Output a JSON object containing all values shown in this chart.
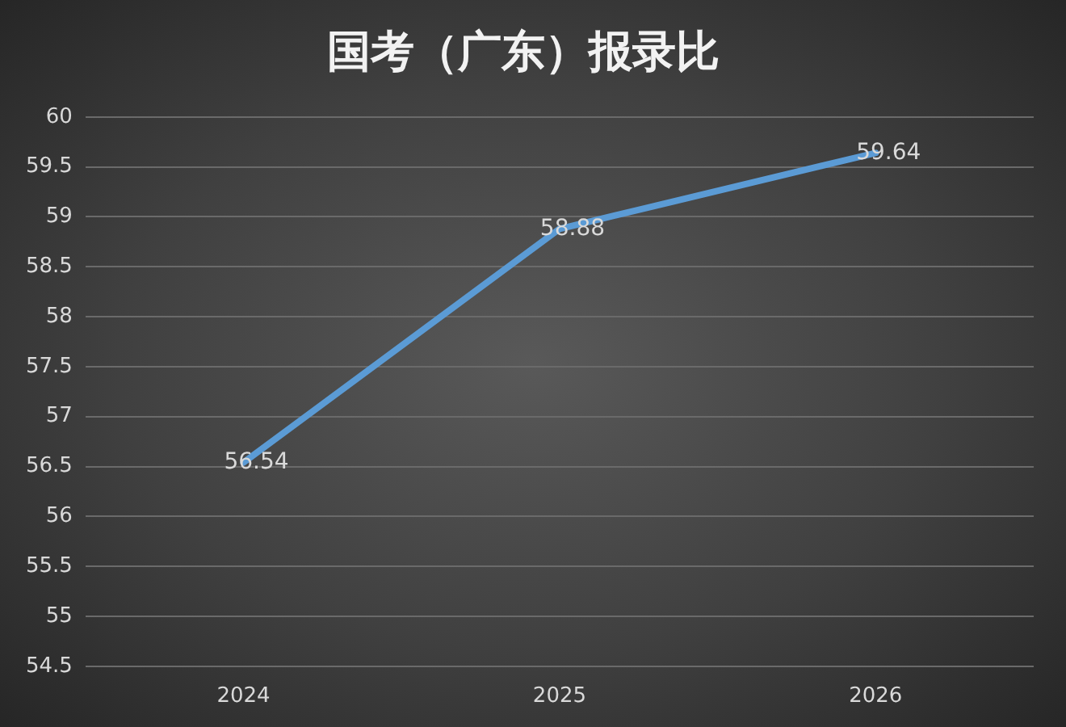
{
  "chart_data": {
    "type": "line",
    "title": "国考（广东）报录比",
    "categories": [
      "2024",
      "2025",
      "2026"
    ],
    "series": [
      {
        "color": "#5b9bd5",
        "values": [
          56.54,
          58.88,
          59.64
        ]
      }
    ],
    "ylim": [
      54.5,
      60
    ],
    "yticks": [
      54.5,
      55,
      55.5,
      56,
      56.5,
      57,
      57.5,
      58,
      58.5,
      59,
      59.5,
      60
    ],
    "grid": "y",
    "data_labels": true,
    "marker": "none",
    "line_style": "solid",
    "legend": false
  }
}
